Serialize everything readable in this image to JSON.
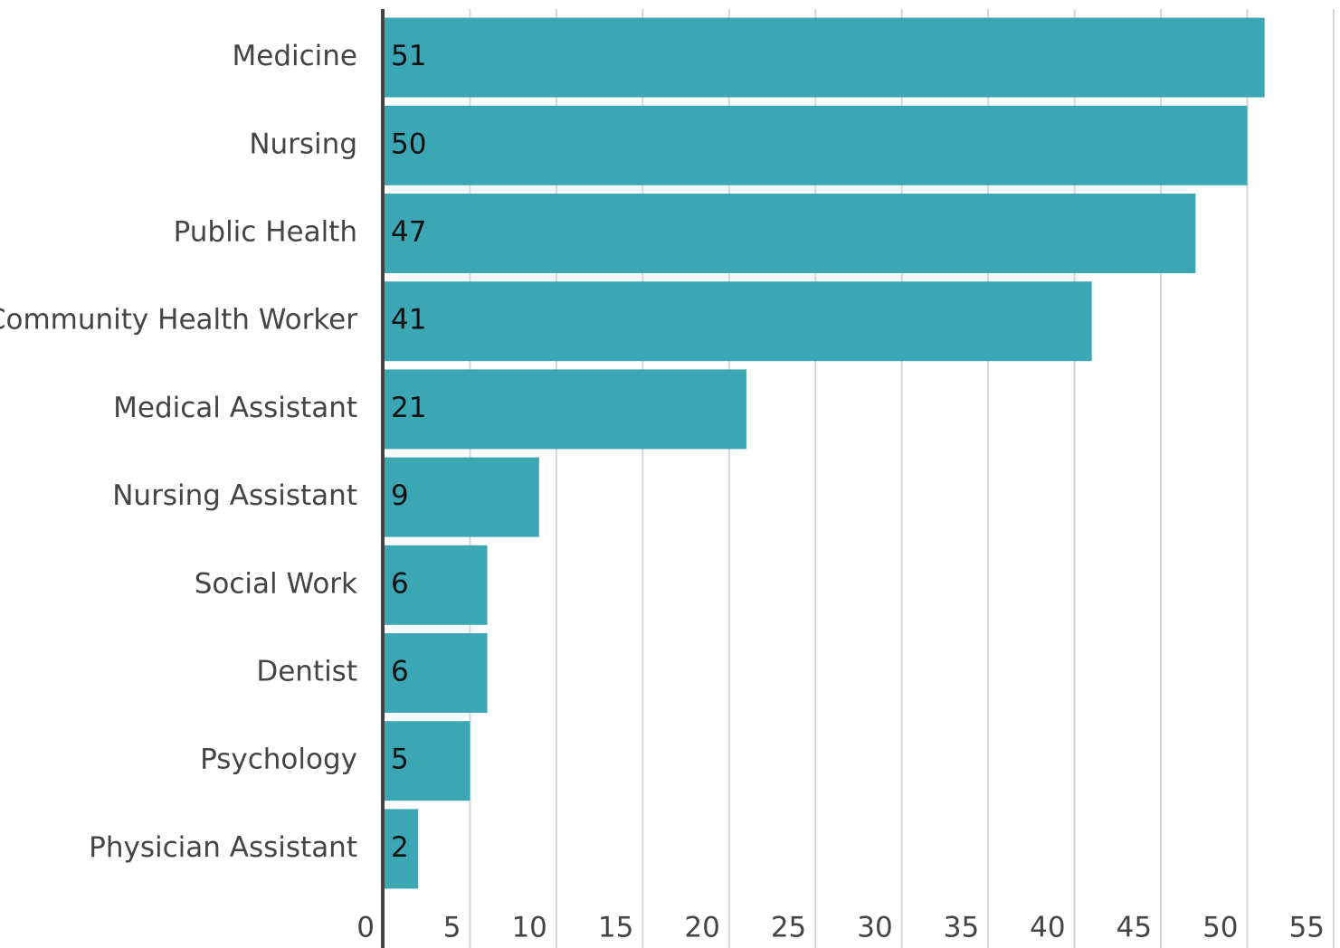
{
  "chart_data": {
    "type": "barh",
    "categories": [
      "Medicine",
      "Nursing",
      "Public Health",
      "Community Health Worker",
      "Medical Assistant",
      "Nursing Assistant",
      "Social Work",
      "Dentist",
      "Psychology",
      "Physician Assistant"
    ],
    "values": [
      51,
      50,
      47,
      41,
      21,
      9,
      6,
      6,
      5,
      2
    ],
    "color": "#3ba7b5",
    "xlim": [
      0,
      55
    ],
    "xticks": [
      0,
      5,
      10,
      15,
      20,
      25,
      30,
      35,
      40,
      45,
      50,
      55
    ],
    "grid": true
  }
}
